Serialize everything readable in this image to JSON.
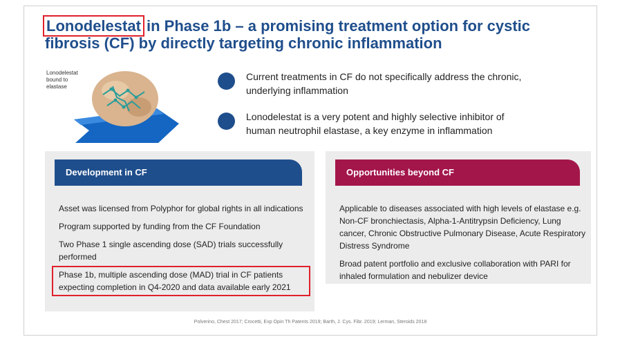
{
  "title": {
    "highlight": "Lonodelestat",
    "line1_rest": " in Phase 1b – a promising treatment option for cystic",
    "line2": "fibrosis (CF) by directly targeting chronic inflammation"
  },
  "molecule_label": "Lonodelestat bound to elastase",
  "bullets": [
    {
      "text": "Current treatments in CF do not specifically address the chronic, underlying inflammation"
    },
    {
      "text": "Lonodelestat is a very potent and highly selective inhibitor of human neutrophil elastase, a key enzyme in inflammation"
    }
  ],
  "development": {
    "header": "Development in CF",
    "items": [
      "Asset was licensed from Polyphor for global rights in all indications",
      "Program supported by funding from the CF Foundation",
      "Two Phase 1 single ascending dose (SAD) trials successfully performed",
      "Phase 1b, multiple ascending dose (MAD) trial in CF patients expecting completion in Q4-2020 and data available early 2021"
    ]
  },
  "opportunities": {
    "header": "Opportunities beyond CF",
    "items": [
      "Applicable to diseases associated with high levels of elastase e.g. Non-CF bronchiectasis, Alpha-1-Antitrypsin Deficiency, Lung cancer, Chronic Obstructive Pulmonary Disease, Acute Respiratory Distress Syndrome",
      "Broad patent portfolio and exclusive collaboration with PARI for inhaled formulation and nebulizer device"
    ]
  },
  "references": "Polverino, Chest 2017; Crocetti, Exp Opin Th Patents 2019; Barth, J. Cys. Fibr. 2019; Lerman, Steroids 2018",
  "colors": {
    "primary_blue": "#1f4e8c",
    "magenta": "#a3164a",
    "highlight_red": "#e0202a",
    "panel_gray": "#ececec"
  }
}
